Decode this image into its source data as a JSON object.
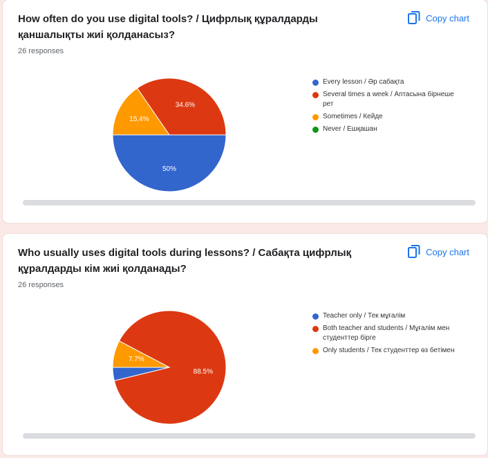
{
  "cards": [
    {
      "title": "How often do you use digital tools? / Цифрлық құралдарды қаншалықты жиі қолданасыз?",
      "responses": "26 responses",
      "copy_label": "Copy chart"
    },
    {
      "title": "Who usually uses digital tools during lessons? / Сабақта цифрлық құралдарды кім жиі қолданады?",
      "responses": "26 responses",
      "copy_label": "Copy chart"
    }
  ],
  "chart_data": [
    {
      "type": "pie",
      "categories": [
        "Every lesson / Әр сабақта",
        "Several times a week / Аптасына бірнеше рет",
        "Sometimes / Кейде",
        "Never / Ешқашан"
      ],
      "values": [
        50,
        34.6,
        15.4,
        0
      ],
      "labels": [
        "50%",
        "34.6%",
        "15.4%",
        ""
      ],
      "colors": [
        "#3366cc",
        "#dc3912",
        "#ff9900",
        "#109618"
      ],
      "legend": "right"
    },
    {
      "type": "pie",
      "categories": [
        "Teacher only / Тек мұғалім",
        "Both teacher and students / Мұғалім мен студенттер бірге",
        "Only students / Тек студенттер өз бетімен"
      ],
      "values": [
        3.8,
        88.5,
        7.7
      ],
      "labels": [
        "",
        "88.5%",
        "7.7%"
      ],
      "colors": [
        "#3366cc",
        "#dc3912",
        "#ff9900"
      ],
      "legend": "right"
    }
  ]
}
